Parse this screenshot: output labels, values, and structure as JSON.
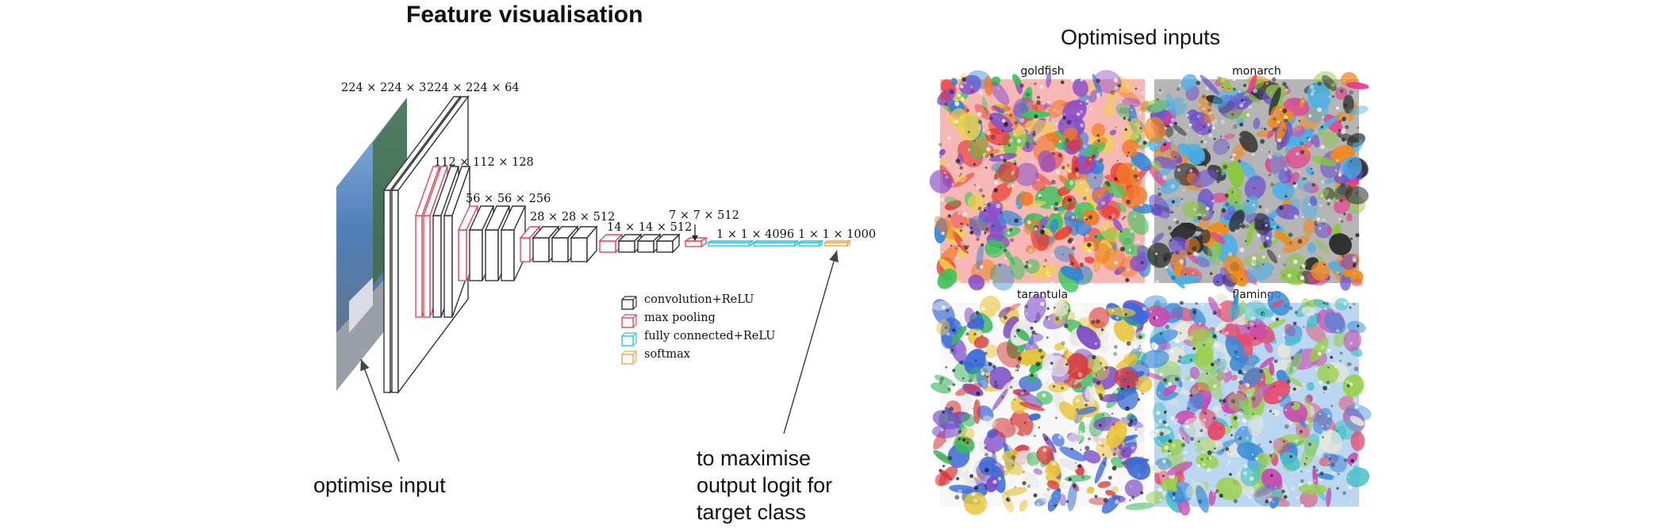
{
  "left": {
    "title": "Feature visualisation",
    "dims": {
      "input": "224 × 224 × 3",
      "conv1": "224 × 224 × 64",
      "conv2": "112 × 112 × 128",
      "conv3": "56 × 56 × 256",
      "conv4": "28 × 28 × 512",
      "conv5": "14 × 14 × 512",
      "pool5": "7 × 7 × 512",
      "fc": "1 × 1 × 4096",
      "out": "1 × 1 × 1000"
    },
    "legend": [
      {
        "label": "convolution+ReLU",
        "color": "#333333"
      },
      {
        "label": "max pooling",
        "color": "#e8475a"
      },
      {
        "label": "fully  connected+ReLU",
        "color": "#22c4e8"
      },
      {
        "label": "softmax",
        "color": "#f2a64a"
      }
    ],
    "annotation_input": "optimise input",
    "annotation_output": [
      "to maximise",
      "output logit for",
      "target class"
    ]
  },
  "right": {
    "title": "Optimised inputs",
    "panels": [
      {
        "label": "goldfish",
        "palette": [
          "#e8322c",
          "#2f86d6",
          "#f0d24a",
          "#3ac45a",
          "#8a4fc8",
          "#f07a2a"
        ]
      },
      {
        "label": "monarch",
        "palette": [
          "#f08a1e",
          "#2a2a2a",
          "#e83a8a",
          "#4ab0e8",
          "#8ac83a",
          "#6a4fd0"
        ]
      },
      {
        "label": "tarantula",
        "palette": [
          "#3a6ad8",
          "#d83a3a",
          "#e8e8e8",
          "#3ab85a",
          "#7a4ac8",
          "#e8c43a"
        ]
      },
      {
        "label": "flamingo",
        "palette": [
          "#e84a6a",
          "#4ac0c8",
          "#e8e8d8",
          "#3a8ad8",
          "#9ad04a",
          "#c84ab0"
        ]
      }
    ]
  }
}
